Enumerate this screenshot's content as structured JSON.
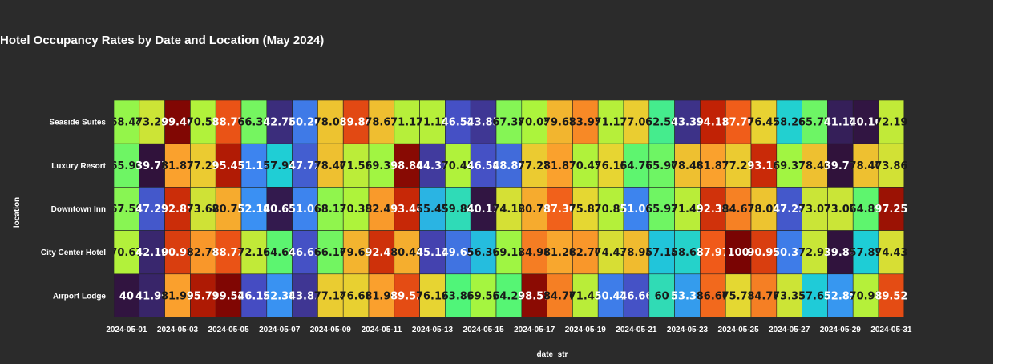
{
  "chart_data": {
    "type": "heatmap",
    "title": "Hotel Occupancy Rates by Date and Location (May 2024)",
    "xlabel": "date_str",
    "ylabel": "location",
    "x": [
      "2024-05-01",
      "2024-05-02",
      "2024-05-03",
      "2024-05-04",
      "2024-05-05",
      "2024-05-06",
      "2024-05-07",
      "2024-05-08",
      "2024-05-09",
      "2024-05-10",
      "2024-05-11",
      "2024-05-12",
      "2024-05-13",
      "2024-05-14",
      "2024-05-15",
      "2024-05-16",
      "2024-05-17",
      "2024-05-18",
      "2024-05-19",
      "2024-05-20",
      "2024-05-21",
      "2024-05-22",
      "2024-05-23",
      "2024-05-24",
      "2024-05-25",
      "2024-05-26",
      "2024-05-27",
      "2024-05-28",
      "2024-05-29",
      "2024-05-30",
      "2024-05-31"
    ],
    "x_tick_labels": [
      "2024-05-01",
      "2024-05-03",
      "2024-05-05",
      "2024-05-07",
      "2024-05-09",
      "2024-05-11",
      "2024-05-13",
      "2024-05-15",
      "2024-05-17",
      "2024-05-19",
      "2024-05-21",
      "2024-05-23",
      "2024-05-25",
      "2024-05-27",
      "2024-05-29",
      "2024-05-31"
    ],
    "y": [
      "Seaside Suites",
      "Luxury Resort",
      "Downtown Inn",
      "City Center Hotel",
      "Airport Lodge"
    ],
    "z": [
      [
        68.44,
        73.26,
        99.46,
        70.58,
        88.77,
        66.31,
        42.78,
        50.26,
        78.07,
        89.84,
        78.61,
        71.12,
        71.12,
        46.52,
        43.85,
        67.38,
        70.05,
        79.67,
        83.95,
        71.12,
        77.0,
        62.56,
        43.31,
        94.11,
        87.7,
        76.47,
        58.28,
        65.77,
        41.17,
        40.1,
        72.19
      ],
      [
        65.9,
        39.77,
        81.81,
        77.27,
        95.45,
        51.13,
        57.95,
        47.72,
        78.4,
        71.59,
        69.31,
        98.86,
        44.31,
        70.45,
        46.59,
        48.86,
        77.27,
        81.81,
        70.45,
        76.13,
        64.77,
        65.9,
        78.4,
        81.81,
        77.27,
        93.18,
        69.31,
        78.4,
        39.77,
        78.4,
        73.86
      ],
      [
        67.58,
        47.25,
        92.85,
        73.62,
        80.76,
        52.19,
        40.65,
        51.09,
        68.13,
        70.33,
        82.41,
        93.4,
        55.49,
        59.89,
        40.11,
        74.17,
        80.76,
        87.36,
        75.82,
        70.87,
        51.09,
        65.93,
        71.42,
        92.3,
        84.61,
        78.02,
        47.25,
        73.07,
        73.07,
        64.83,
        97.25
      ],
      [
        70.67,
        42.1,
        90.97,
        82.7,
        88.72,
        72.18,
        64.66,
        46.61,
        66.16,
        79.69,
        92.48,
        80.45,
        45.11,
        49.62,
        56.39,
        69.17,
        84.96,
        81.2,
        82.7,
        74.43,
        78.94,
        57.14,
        58.64,
        87.97,
        100,
        90.97,
        50.37,
        72.93,
        39.85,
        57.89,
        74.43
      ],
      [
        40,
        41.9,
        81.9,
        95.71,
        99.52,
        46.19,
        52.38,
        43.81,
        77.14,
        76.66,
        81.9,
        89.52,
        76.19,
        63.81,
        69.52,
        64.28,
        98.57,
        84.76,
        71.42,
        50.47,
        46.66,
        60,
        53.33,
        86.66,
        75.71,
        84.76,
        73.33,
        57.61,
        52.85,
        70.95,
        89.52
      ]
    ],
    "cell_text": [
      [
        "68.44",
        "73.26",
        "99.46",
        "70.58",
        "88.77",
        "66.31",
        "42.78",
        "50.26",
        "78.07",
        "89.84",
        "78.61",
        "71.12",
        "71.12",
        "46.52",
        "43.85",
        "67.38",
        "70.05",
        "79.67",
        "83.95",
        "71.12",
        "77.00",
        "62.56",
        "43.31",
        "94.11",
        "87.70",
        "76.47",
        "58.28",
        "65.77",
        "41.17",
        "40.10",
        "72.19"
      ],
      [
        "65.90",
        "39.77",
        "81.81",
        "77.27",
        "95.45",
        "51.13",
        "57.95",
        "47.72",
        "78.40",
        "71.59",
        "69.31",
        "98.86",
        "44.31",
        "70.45",
        "46.59",
        "48.86",
        "77.27",
        "81.81",
        "70.45",
        "76.13",
        "64.77",
        "65.90",
        "78.40",
        "81.81",
        "77.27",
        "93.18",
        "69.31",
        "78.40",
        "39.77",
        "78.40",
        "73.86"
      ],
      [
        "67.58",
        "47.25",
        "92.85",
        "73.62",
        "80.76",
        "52.19",
        "40.65",
        "51.09",
        "68.13",
        "70.33",
        "82.41",
        "93.40",
        "55.49",
        "59.89",
        "40.11",
        "74.17",
        "80.76",
        "87.36",
        "75.82",
        "70.87",
        "51.09",
        "65.93",
        "71.42",
        "92.30",
        "84.61",
        "78.02",
        "47.25",
        "73.07",
        "73.07",
        "64.83",
        "97.25"
      ],
      [
        "70.67",
        "42.10",
        "90.97",
        "82.70",
        "88.72",
        "72.18",
        "64.66",
        "46.61",
        "66.16",
        "79.69",
        "92.48",
        "80.45",
        "45.11",
        "49.62",
        "56.39",
        "69.17",
        "84.96",
        "81.20",
        "82.70",
        "74.43",
        "78.94",
        "57.14",
        "58.64",
        "87.97",
        "100",
        "90.97",
        "50.37",
        "72.93",
        "39.85",
        "57.89",
        "74.43"
      ],
      [
        "40",
        "41.90",
        "81.90",
        "95.71",
        "99.52",
        "46.19",
        "52.38",
        "43.81",
        "77.14",
        "76.66",
        "81.90",
        "89.52",
        "76.19",
        "63.81",
        "69.52",
        "64.28",
        "98.57",
        "84.76",
        "71.42",
        "50.47",
        "46.66",
        "60",
        "53.33",
        "86.66",
        "75.71",
        "84.76",
        "73.33",
        "57.61",
        "52.85",
        "70.95",
        "89.52"
      ]
    ],
    "zlim": [
      39.77,
      100
    ],
    "colorscale": "turbo",
    "colorbar": false,
    "grid": false,
    "legend": "none"
  },
  "colors": {
    "background": "#2b2b2b",
    "cell_border": "#222222",
    "text_light": "#ffffff",
    "text_dark": "#1a1a1a"
  }
}
